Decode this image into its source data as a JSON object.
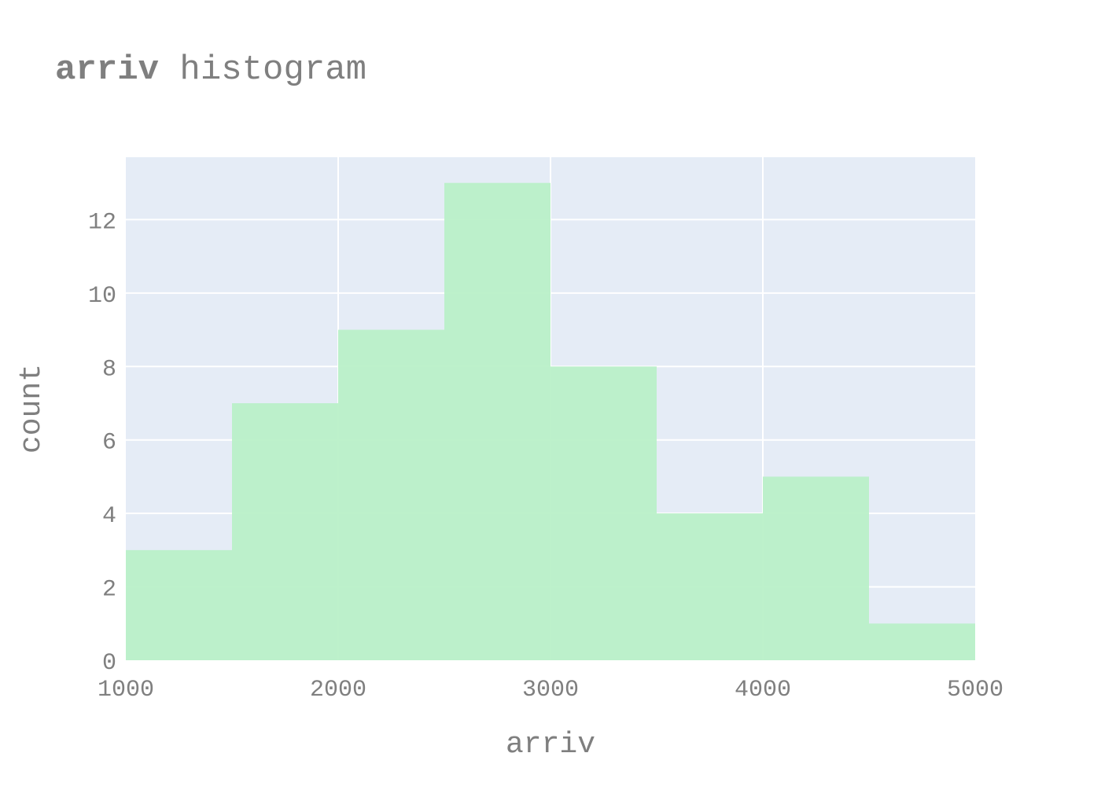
{
  "chart_data": {
    "type": "bar",
    "title_bold": "arriv",
    "title_rest": " histogram",
    "xlabel": "arriv",
    "ylabel": "count",
    "bin_edges": [
      1000,
      1500,
      2000,
      2500,
      3000,
      3500,
      4000,
      4500,
      5000
    ],
    "values": [
      3,
      7,
      9,
      13,
      8,
      4,
      5,
      1
    ],
    "xlim": [
      1000,
      5000
    ],
    "ylim": [
      0,
      13.7
    ],
    "x_ticks": [
      1000,
      2000,
      3000,
      4000,
      5000
    ],
    "y_ticks": [
      0,
      2,
      4,
      6,
      8,
      10,
      12
    ],
    "grid": true,
    "bar_color": "#b9f0c8",
    "plot_bg": "#e5ecf6",
    "grid_color": "#ffffff",
    "text_color": "#7f7f7f"
  }
}
